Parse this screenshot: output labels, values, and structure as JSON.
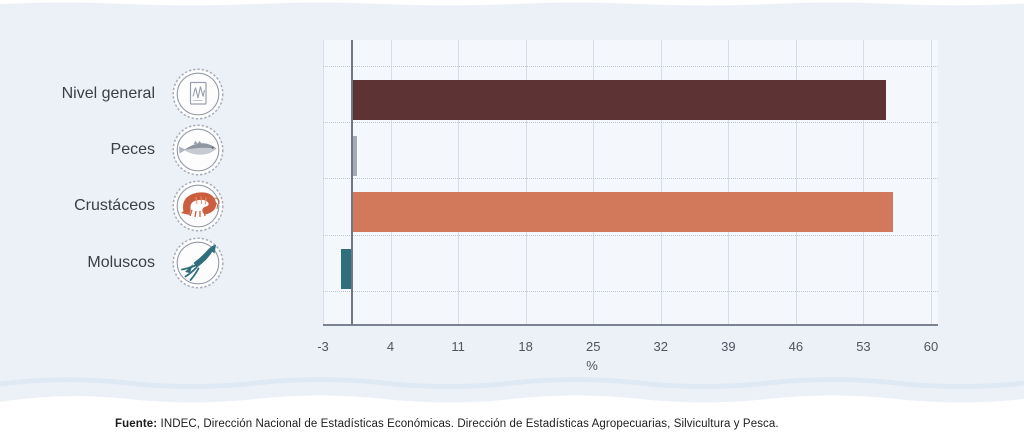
{
  "chart_data": {
    "type": "bar",
    "orientation": "horizontal",
    "title": "",
    "categories": [
      "Nivel general",
      "Peces",
      "Crustáceos",
      "Moluscos"
    ],
    "values": [
      55.3,
      0.5,
      56.1,
      -1.1
    ],
    "series_colors": [
      "#5d3334",
      "#a5aab5",
      "#d1795a",
      "#2f6f7b"
    ],
    "category_icons": [
      "line-chart-document-icon",
      "fish-icon",
      "shrimp-icon",
      "squid-icon"
    ],
    "xlabel": "%",
    "xlim": [
      -3,
      60
    ],
    "xticks": [
      -3,
      4,
      11,
      18,
      25,
      32,
      39,
      46,
      53,
      60
    ],
    "grid": {
      "vertical_lines": true,
      "horizontal_dotted_separators": true
    },
    "zero_line": true,
    "legend": "none"
  },
  "source_note": {
    "prefix": "Fuente:",
    "text": " INDEC, Dirección Nacional de Estadísticas Económicas. Dirección de Estadísticas Agropecuarias, Silvicultura y Pesca."
  },
  "theme": {
    "panel_background": "#ecf1f8",
    "plot_background": "#f4f7fb",
    "gridline_color": "#d8dde7",
    "axis_line_color": "#7b8290",
    "zero_line_color": "#6e7684",
    "tick_text_color": "#4e5560",
    "label_text_color": "#3a3f47"
  }
}
